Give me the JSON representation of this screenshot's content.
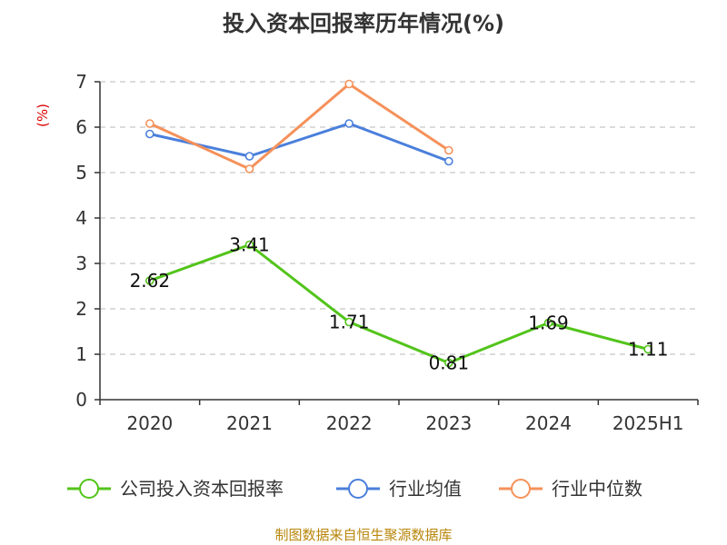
{
  "chart_data": {
    "type": "line",
    "title": "投入资本回报率历年情况(%)",
    "ylabel": "(%)",
    "categories": [
      "2020",
      "2021",
      "2022",
      "2023",
      "2024",
      "2025H1"
    ],
    "ylim": [
      0,
      7
    ],
    "yticks": [
      0,
      1,
      2,
      3,
      4,
      5,
      6,
      7
    ],
    "grid": true,
    "legend_position": "bottom",
    "series": [
      {
        "name": "公司投入资本回报率",
        "color": "#52c41a",
        "values": [
          2.62,
          3.41,
          1.71,
          0.81,
          1.69,
          1.11
        ],
        "labels": [
          "2.62",
          "3.41",
          "1.71",
          "0.81",
          "1.69",
          "1.11"
        ]
      },
      {
        "name": "行业均值",
        "color": "#4a7fdc",
        "values": [
          5.85,
          5.36,
          6.08,
          5.25,
          null,
          null
        ]
      },
      {
        "name": "行业中位数",
        "color": "#f5915a",
        "values": [
          6.08,
          5.08,
          6.95,
          5.49,
          null,
          null
        ]
      }
    ]
  },
  "source": "制图数据来自恒生聚源数据库"
}
